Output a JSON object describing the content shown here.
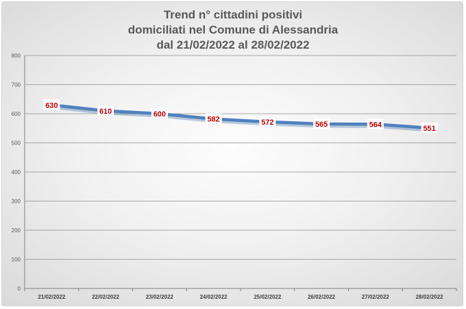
{
  "chart_data": {
    "type": "line",
    "title_lines": [
      "Trend n° cittadini positivi",
      "domiciliati nel Comune di Alessandria",
      "dal 21/02/2022 al 28/02/2022"
    ],
    "categories": [
      "21/02/2022",
      "22/02/2022",
      "23/02/2022",
      "24/02/2022",
      "25/02/2022",
      "26/02/2022",
      "27/02/2022",
      "28/02/2022"
    ],
    "series": [
      {
        "values": [
          630,
          610,
          600,
          582,
          572,
          565,
          564,
          551
        ]
      }
    ],
    "ylim": [
      0,
      800
    ],
    "yticks": [
      0,
      100,
      200,
      300,
      400,
      500,
      600,
      700,
      800
    ],
    "grid": true,
    "legend": "none",
    "data_labels": true,
    "colors": {
      "line": "#4f81bd",
      "data_label": "#c00000",
      "grid": "#8c8c8c"
    }
  }
}
